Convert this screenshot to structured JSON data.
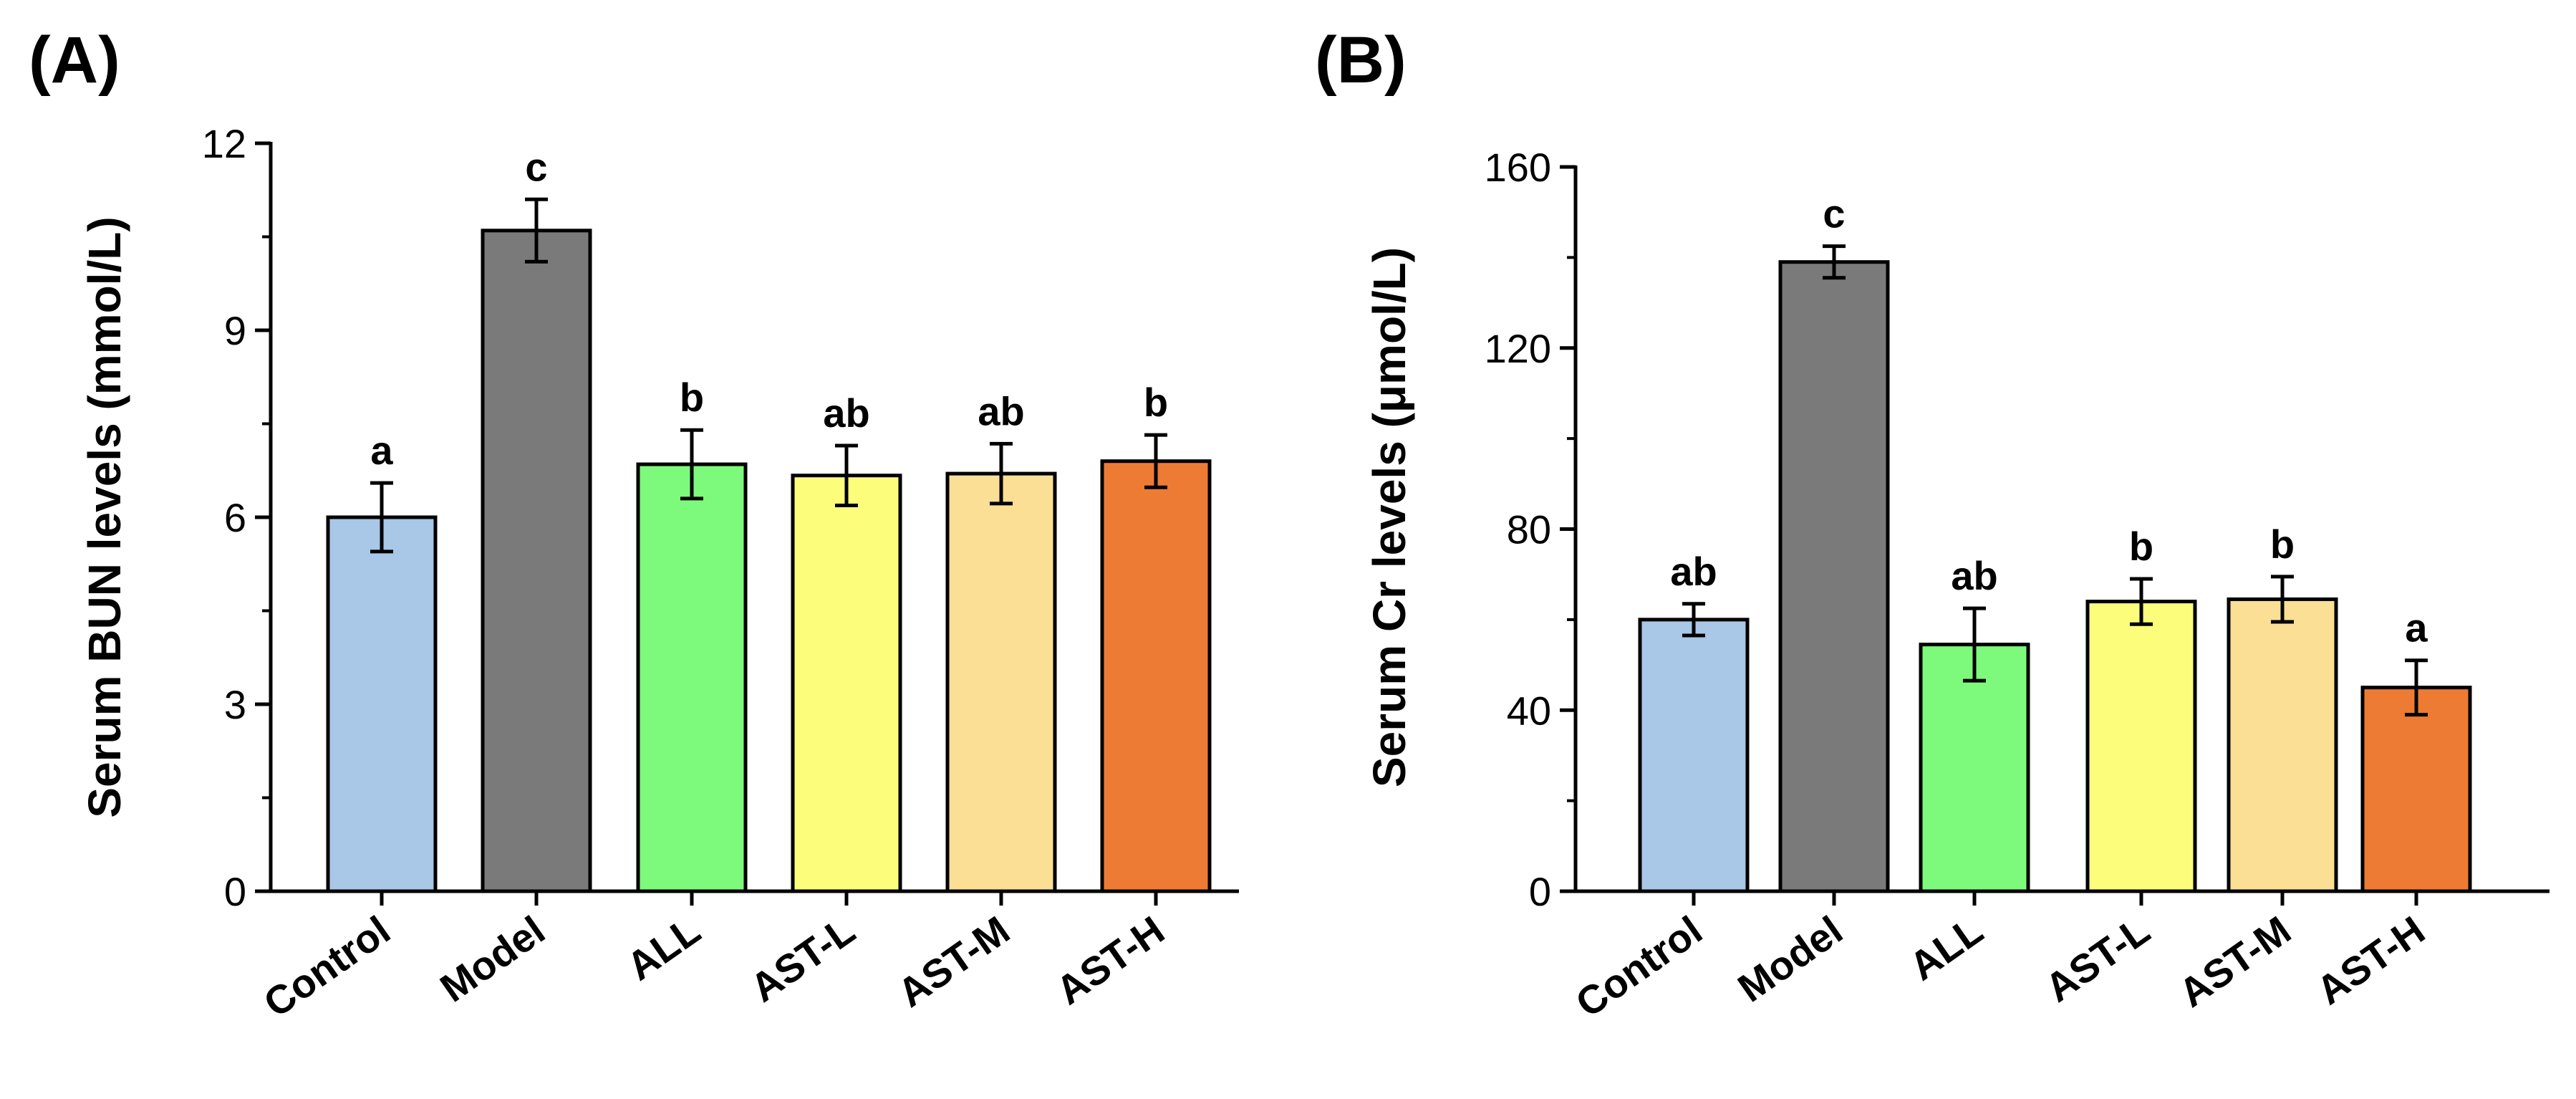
{
  "chart_data": [
    {
      "type": "bar",
      "panel_label": "(A)",
      "ylabel": "Serum BUN levels (mmol/L)",
      "xlabel": "",
      "categories": [
        "Control",
        "Model",
        "ALL",
        "AST-L",
        "AST-M",
        "AST-H"
      ],
      "values": [
        6.0,
        10.6,
        6.85,
        6.67,
        6.7,
        6.9
      ],
      "errors": [
        0.55,
        0.5,
        0.55,
        0.48,
        0.48,
        0.42
      ],
      "significance": [
        "a",
        "c",
        "b",
        "ab",
        "ab",
        "b"
      ],
      "colors": [
        "#a9c7e6",
        "#7a7a7a",
        "#7dfa7b",
        "#fdfd7c",
        "#fadf95",
        "#ee7b33"
      ],
      "ylim": [
        0,
        12
      ],
      "yticks": [
        0,
        3,
        6,
        9,
        12
      ],
      "ytick_labels": [
        "0",
        "3",
        "6",
        "9",
        "12"
      ],
      "grid": false,
      "legend": "none"
    },
    {
      "type": "bar",
      "panel_label": "(B)",
      "ylabel": "Serum Cr levels (μmol/L)",
      "xlabel": "",
      "categories": [
        "Control",
        "Model",
        "ALL",
        "AST-L",
        "AST-M",
        "AST-H"
      ],
      "values": [
        60,
        139,
        54.5,
        64,
        64.5,
        45
      ],
      "errors": [
        3.5,
        3.5,
        8.0,
        5.0,
        5.0,
        6.0
      ],
      "significance": [
        "ab",
        "c",
        "ab",
        "b",
        "b",
        "a"
      ],
      "colors": [
        "#a9c7e6",
        "#7a7a7a",
        "#7dfa7b",
        "#fdfd7c",
        "#fadf95",
        "#ee7b33"
      ],
      "ylim": [
        0,
        160
      ],
      "yticks": [
        0,
        40,
        80,
        120,
        160
      ],
      "ytick_labels": [
        "0",
        "40",
        "80",
        "120",
        "160"
      ],
      "grid": false,
      "legend": "none"
    }
  ]
}
